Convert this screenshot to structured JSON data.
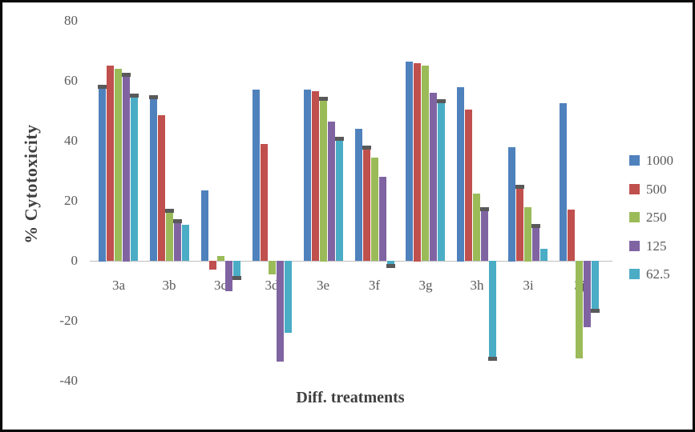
{
  "chart_data": {
    "type": "bar",
    "title": "",
    "xlabel": "Diff. treatments",
    "ylabel": "% Cytotoxicity",
    "ylim": [
      -40,
      80
    ],
    "yticks": [
      80,
      60,
      40,
      20,
      0,
      -20,
      -40
    ],
    "grid": false,
    "legend_position": "right",
    "categories": [
      "3a",
      "3b",
      "3c",
      "3d",
      "3e",
      "3f",
      "3g",
      "3h",
      "3i",
      "3j"
    ],
    "series": [
      {
        "name": "1000",
        "color": "#4F81BD",
        "values": [
          58,
          54.5,
          23.5,
          57,
          57,
          44,
          66.5,
          58,
          38,
          52.5
        ],
        "error_cap_indices": [
          0,
          1
        ]
      },
      {
        "name": "500",
        "color": "#C0504D",
        "values": [
          65,
          48.5,
          -3,
          39,
          56.5,
          37.5,
          66,
          50.5,
          24.5,
          17
        ],
        "error_cap_indices": [
          5,
          8
        ]
      },
      {
        "name": "250",
        "color": "#9BBB59",
        "values": [
          64,
          16.5,
          1.5,
          -4.5,
          54,
          34.5,
          65,
          22.5,
          18,
          -32.5
        ],
        "error_cap_indices": [
          1,
          4
        ]
      },
      {
        "name": "125",
        "color": "#8064A2",
        "values": [
          62,
          13,
          -10,
          -33.5,
          46.5,
          28,
          56,
          17,
          11.5,
          -22
        ],
        "error_cap_indices": [
          0,
          1,
          7,
          8
        ]
      },
      {
        "name": "62.5",
        "color": "#4BACC6",
        "values": [
          55,
          12,
          -5.5,
          -24,
          40.5,
          -1.5,
          53,
          -32.5,
          4,
          -16.5
        ],
        "error_cap_indices": [
          0,
          2,
          4,
          5,
          6,
          7,
          9
        ]
      }
    ],
    "error_cap_color": "#595959",
    "axis_text_color": "#595959",
    "axis_title_color": "#3F3F3F",
    "axis_line_color": "#BFBFBF"
  }
}
